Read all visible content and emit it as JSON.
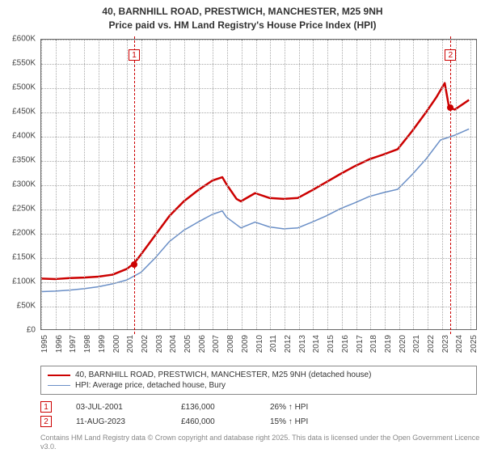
{
  "title_line1": "40, BARNHILL ROAD, PRESTWICH, MANCHESTER, M25 9NH",
  "title_line2": "Price paid vs. HM Land Registry's House Price Index (HPI)",
  "chart": {
    "type": "line",
    "background_color": "#ffffff",
    "grid_color": "#aaaaaa",
    "border_color": "#666666",
    "x": {
      "min": 1995,
      "max": 2025.5,
      "ticks": [
        1995,
        1996,
        1997,
        1998,
        1999,
        2000,
        2001,
        2002,
        2003,
        2004,
        2005,
        2006,
        2007,
        2008,
        2009,
        2010,
        2011,
        2012,
        2013,
        2014,
        2015,
        2016,
        2017,
        2018,
        2019,
        2020,
        2021,
        2022,
        2023,
        2024,
        2025
      ],
      "label_fontsize": 10,
      "rotation": -90
    },
    "y": {
      "min": 0,
      "max": 600000,
      "step": 50000,
      "tick_labels": [
        "£0",
        "£50K",
        "£100K",
        "£150K",
        "£200K",
        "£250K",
        "£300K",
        "£350K",
        "£400K",
        "£450K",
        "£500K",
        "£550K",
        "£600K"
      ],
      "label_fontsize": 10
    },
    "series": [
      {
        "name": "40, BARNHILL ROAD, PRESTWICH, MANCHESTER, M25 9NH (detached house)",
        "color": "#cc0000",
        "line_width": 2.5,
        "data": [
          [
            1995,
            105000
          ],
          [
            1996,
            104000
          ],
          [
            1997,
            106000
          ],
          [
            1998,
            107000
          ],
          [
            1999,
            109000
          ],
          [
            2000,
            113000
          ],
          [
            2001,
            125000
          ],
          [
            2001.5,
            136000
          ],
          [
            2002,
            155000
          ],
          [
            2003,
            195000
          ],
          [
            2004,
            235000
          ],
          [
            2005,
            265000
          ],
          [
            2006,
            288000
          ],
          [
            2007,
            308000
          ],
          [
            2007.7,
            315000
          ],
          [
            2008,
            300000
          ],
          [
            2008.7,
            270000
          ],
          [
            2009,
            265000
          ],
          [
            2010,
            282000
          ],
          [
            2011,
            272000
          ],
          [
            2012,
            270000
          ],
          [
            2013,
            272000
          ],
          [
            2014,
            288000
          ],
          [
            2015,
            305000
          ],
          [
            2016,
            322000
          ],
          [
            2017,
            338000
          ],
          [
            2018,
            352000
          ],
          [
            2019,
            362000
          ],
          [
            2020,
            373000
          ],
          [
            2021,
            410000
          ],
          [
            2022,
            450000
          ],
          [
            2022.7,
            480000
          ],
          [
            2023,
            495000
          ],
          [
            2023.3,
            510000
          ],
          [
            2023.6,
            460000
          ],
          [
            2024,
            455000
          ],
          [
            2024.5,
            465000
          ],
          [
            2025,
            475000
          ]
        ]
      },
      {
        "name": "HPI: Average price, detached house, Bury",
        "color": "#6a8fc7",
        "line_width": 1.5,
        "data": [
          [
            1995,
            78000
          ],
          [
            1996,
            79000
          ],
          [
            1997,
            81000
          ],
          [
            1998,
            84000
          ],
          [
            1999,
            88000
          ],
          [
            2000,
            94000
          ],
          [
            2001,
            102000
          ],
          [
            2002,
            118000
          ],
          [
            2003,
            148000
          ],
          [
            2004,
            182000
          ],
          [
            2005,
            205000
          ],
          [
            2006,
            222000
          ],
          [
            2007,
            238000
          ],
          [
            2007.7,
            245000
          ],
          [
            2008,
            232000
          ],
          [
            2009,
            210000
          ],
          [
            2010,
            222000
          ],
          [
            2011,
            212000
          ],
          [
            2012,
            208000
          ],
          [
            2013,
            210000
          ],
          [
            2014,
            222000
          ],
          [
            2015,
            235000
          ],
          [
            2016,
            250000
          ],
          [
            2017,
            262000
          ],
          [
            2018,
            275000
          ],
          [
            2019,
            283000
          ],
          [
            2020,
            290000
          ],
          [
            2021,
            320000
          ],
          [
            2022,
            353000
          ],
          [
            2023,
            392000
          ],
          [
            2024,
            402000
          ],
          [
            2025,
            415000
          ]
        ]
      }
    ],
    "markers": [
      {
        "id": "1",
        "x": 2001.5,
        "y": 136000,
        "dot_y": 136000,
        "dot_color": "#cc0000",
        "box_top_y": 580000
      },
      {
        "id": "2",
        "x": 2023.6,
        "y": 460000,
        "dot_y": 460000,
        "dot_color": "#cc0000",
        "box_top_y": 580000
      }
    ]
  },
  "events": [
    {
      "id": "1",
      "date": "03-JUL-2001",
      "price": "£136,000",
      "diff": "26% ↑ HPI"
    },
    {
      "id": "2",
      "date": "11-AUG-2023",
      "price": "£460,000",
      "diff": "15% ↑ HPI"
    }
  ],
  "footnote": "Contains HM Land Registry data © Crown copyright and database right 2025.\nThis data is licensed under the Open Government Licence v3.0."
}
